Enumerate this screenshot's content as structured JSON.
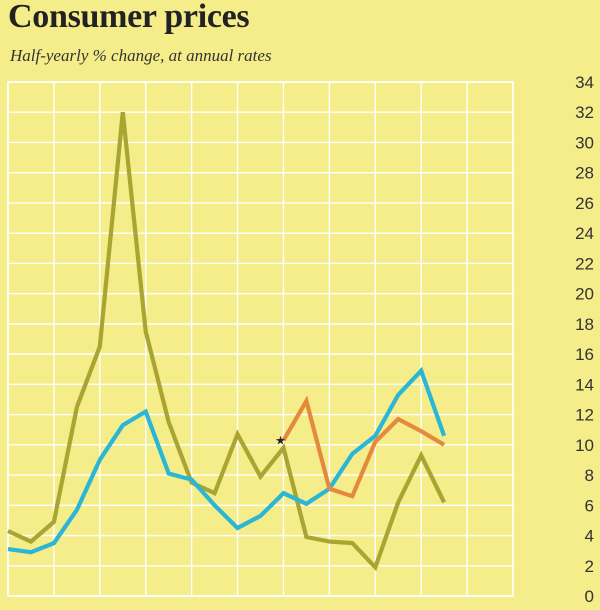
{
  "chart_data": {
    "type": "line",
    "title": "Consumer prices",
    "subtitle": "Half-yearly % change, at annual rates",
    "xlabel": "",
    "ylabel": "",
    "ylim": [
      0,
      34
    ],
    "yticks": [
      0,
      2,
      4,
      6,
      8,
      10,
      12,
      14,
      16,
      18,
      20,
      22,
      24,
      26,
      28,
      30,
      32,
      34
    ],
    "grid": true,
    "x": [
      0,
      0.5,
      1,
      1.5,
      2,
      2.5,
      3,
      3.5,
      4,
      4.5,
      5,
      5.5,
      6,
      6.5,
      7,
      7.5,
      8,
      8.5,
      9,
      9.5,
      10,
      10.5,
      11
    ],
    "series": [
      {
        "name": "olive",
        "color": "#a8a532",
        "points": [
          [
            0,
            4.3
          ],
          [
            0.5,
            3.6
          ],
          [
            1,
            4.9
          ],
          [
            1.5,
            12.5
          ],
          [
            2,
            16.5
          ],
          [
            2.5,
            32.0
          ],
          [
            3,
            17.5
          ],
          [
            3.5,
            11.5
          ],
          [
            4,
            7.5
          ],
          [
            4.5,
            6.8
          ],
          [
            5,
            10.7
          ],
          [
            5.5,
            7.9
          ],
          [
            6,
            9.8
          ],
          [
            6.5,
            3.9
          ],
          [
            7,
            3.6
          ],
          [
            7.5,
            3.5
          ],
          [
            8,
            1.9
          ],
          [
            8.5,
            6.2
          ],
          [
            9,
            9.3
          ],
          [
            9.5,
            6.2
          ]
        ]
      },
      {
        "name": "blue",
        "color": "#2bb6d6",
        "points": [
          [
            0,
            3.1
          ],
          [
            0.5,
            2.9
          ],
          [
            1,
            3.5
          ],
          [
            1.5,
            5.7
          ],
          [
            2,
            9.0
          ],
          [
            2.5,
            11.3
          ],
          [
            3,
            12.2
          ],
          [
            3.5,
            8.1
          ],
          [
            4,
            7.7
          ],
          [
            4.5,
            6.0
          ],
          [
            5,
            4.5
          ],
          [
            5.5,
            5.3
          ],
          [
            6,
            6.8
          ],
          [
            6.5,
            6.1
          ],
          [
            7,
            7.1
          ],
          [
            7.5,
            9.4
          ],
          [
            8,
            10.6
          ],
          [
            8.5,
            13.3
          ],
          [
            9,
            14.9
          ],
          [
            9.5,
            10.6
          ]
        ]
      },
      {
        "name": "orange",
        "color": "#e48a3f",
        "points": [
          [
            6,
            10.3
          ],
          [
            6.5,
            12.9
          ],
          [
            7,
            7.1
          ],
          [
            7.5,
            6.6
          ],
          [
            8,
            10.2
          ],
          [
            8.5,
            11.7
          ],
          [
            9,
            10.9
          ],
          [
            9.5,
            10.0
          ]
        ]
      }
    ],
    "marker": {
      "symbol": "★",
      "point": [
        6,
        10.3
      ]
    }
  }
}
